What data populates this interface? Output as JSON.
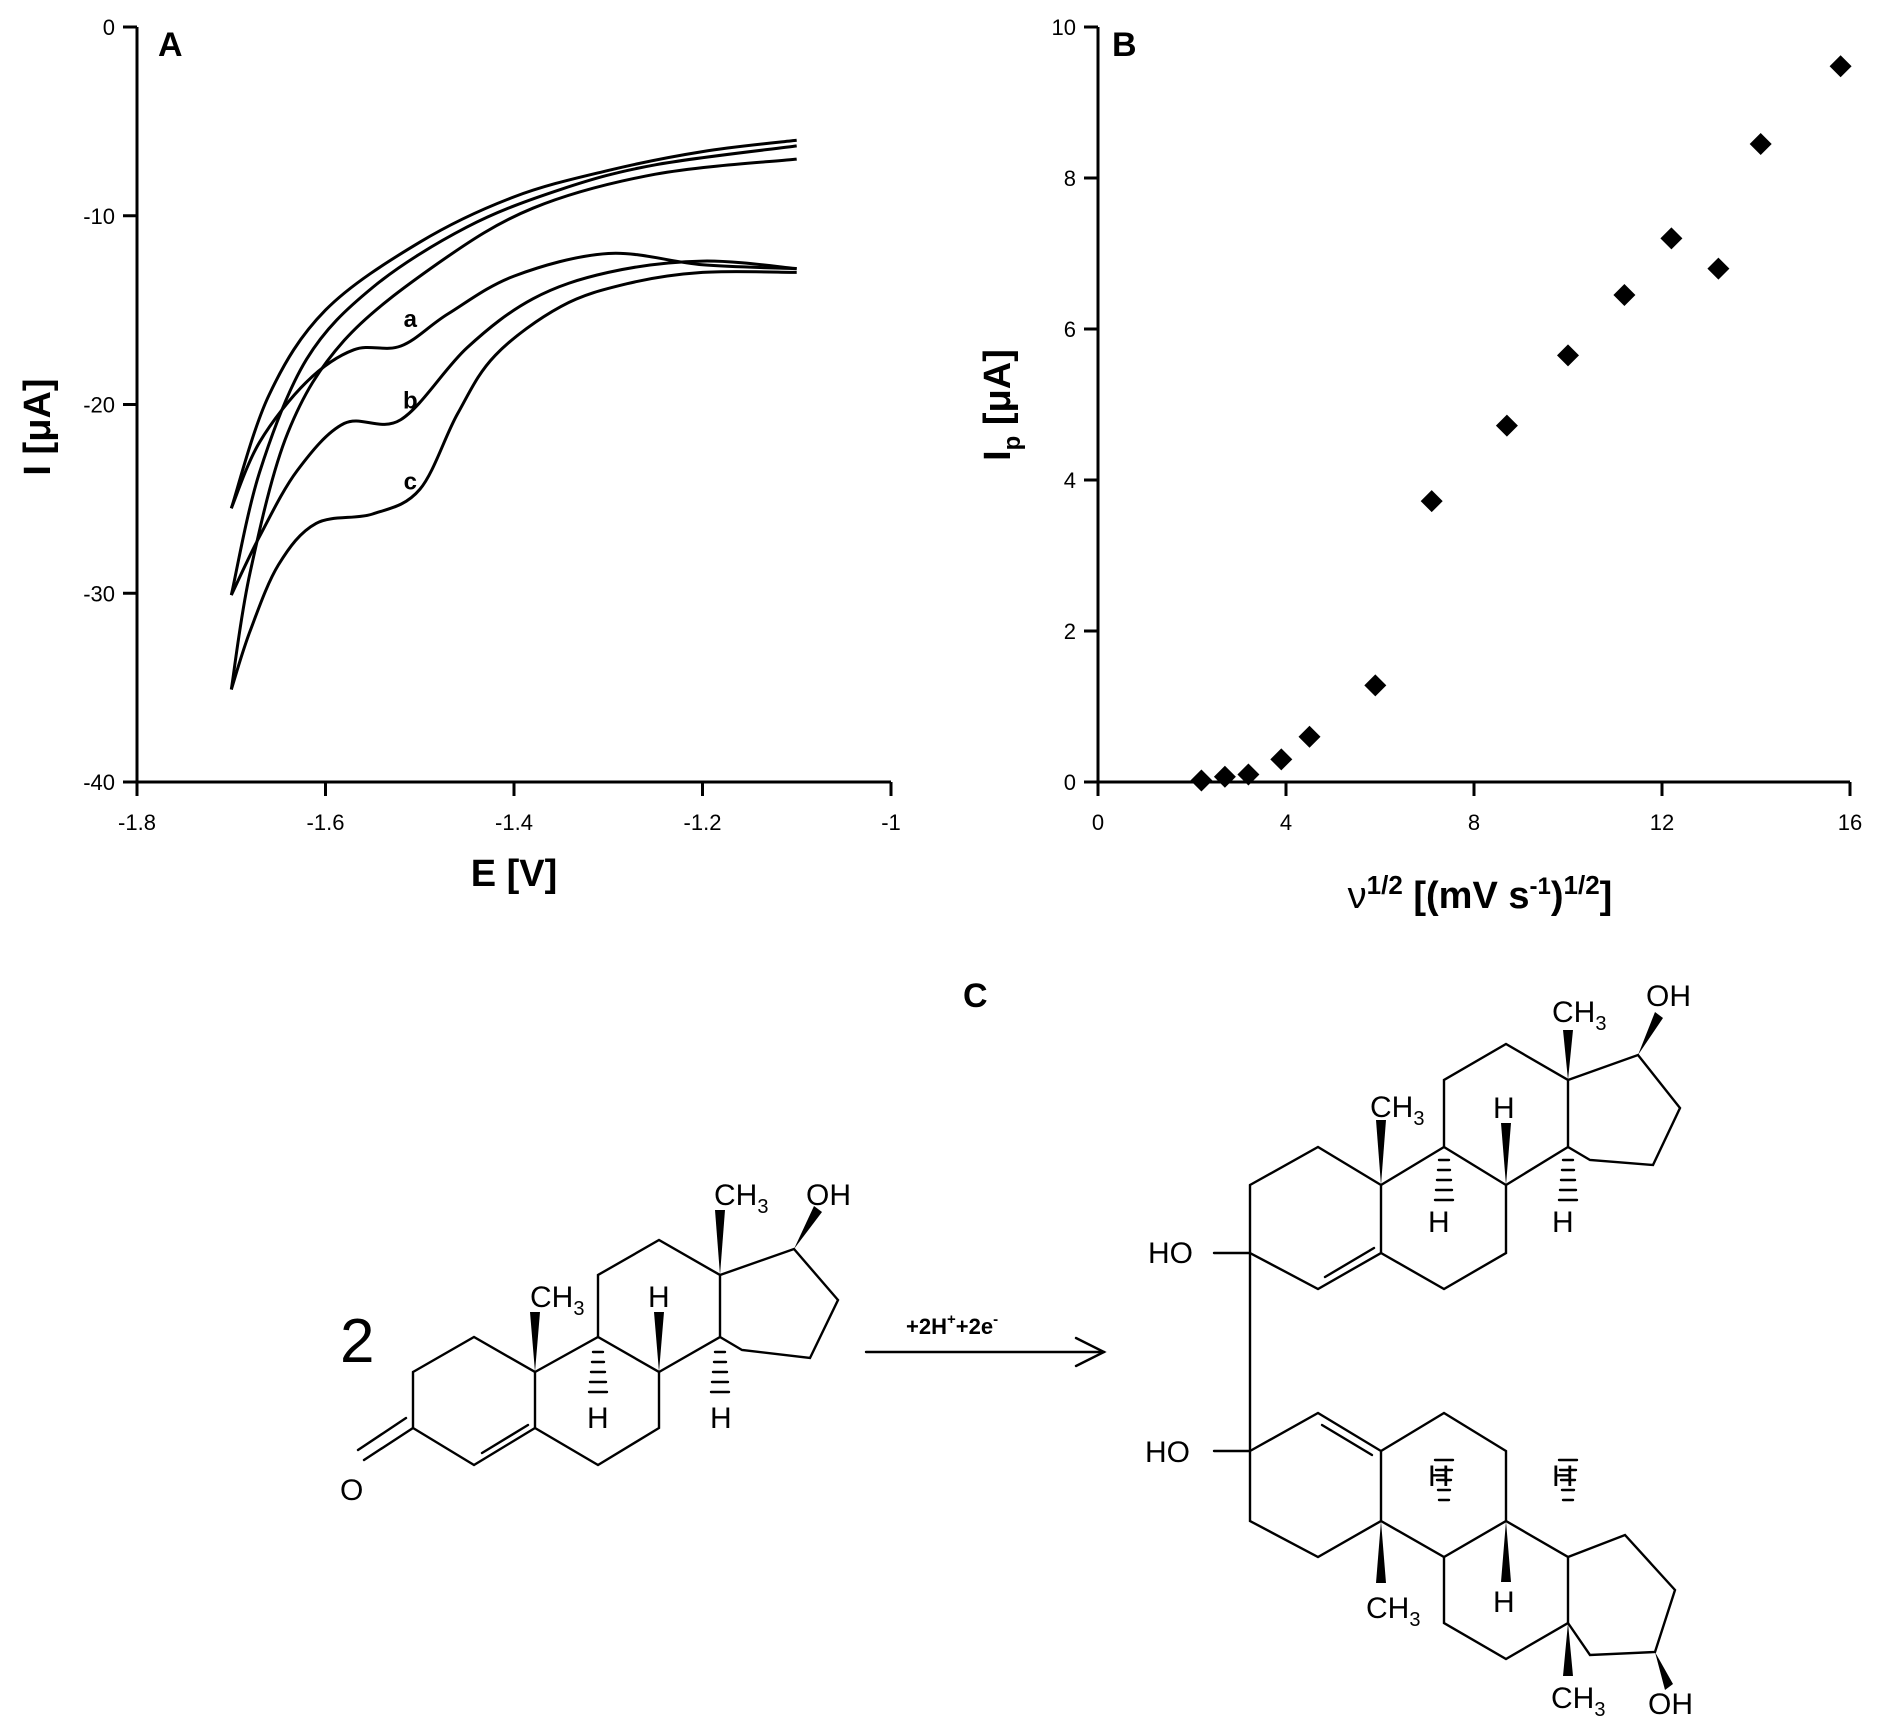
{
  "chart_data": [
    {
      "panel": "A",
      "type": "line",
      "xlabel": "E [V]",
      "ylabel": "I [μA]",
      "xlim": [
        -1.8,
        -1.0
      ],
      "ylim": [
        -40,
        0
      ],
      "xticks": [
        -1.8,
        -1.6,
        -1.4,
        -1.2,
        -1.0
      ],
      "xticklabels": [
        "-1.8",
        "-1.6",
        "-1.4",
        "-1.2",
        "-1"
      ],
      "yticks": [
        0,
        -10,
        -20,
        -30,
        -40
      ],
      "yticklabels": [
        "0",
        "-10",
        "-20",
        "-30",
        "-40"
      ],
      "grid": false,
      "series": [
        {
          "name": "a",
          "label_at": [
            -1.51,
            -15.9
          ],
          "forward": [
            [
              -1.1,
              -12.8
            ],
            [
              -1.2,
              -12.6
            ],
            [
              -1.3,
              -12.0
            ],
            [
              -1.4,
              -13.2
            ],
            [
              -1.47,
              -15.2
            ],
            [
              -1.52,
              -16.9
            ],
            [
              -1.57,
              -17.1
            ],
            [
              -1.62,
              -18.8
            ],
            [
              -1.67,
              -22.0
            ],
            [
              -1.7,
              -25.5
            ]
          ],
          "reverse": [
            [
              -1.7,
              -25.5
            ],
            [
              -1.66,
              -19.5
            ],
            [
              -1.6,
              -15.0
            ],
            [
              -1.5,
              -11.4
            ],
            [
              -1.4,
              -9.0
            ],
            [
              -1.3,
              -7.6
            ],
            [
              -1.2,
              -6.6
            ],
            [
              -1.1,
              -6.0
            ]
          ]
        },
        {
          "name": "b",
          "label_at": [
            -1.51,
            -20.2
          ],
          "forward": [
            [
              -1.1,
              -12.8
            ],
            [
              -1.2,
              -12.4
            ],
            [
              -1.3,
              -13.0
            ],
            [
              -1.38,
              -14.4
            ],
            [
              -1.45,
              -17.0
            ],
            [
              -1.52,
              -20.8
            ],
            [
              -1.58,
              -21.0
            ],
            [
              -1.63,
              -23.5
            ],
            [
              -1.67,
              -27.0
            ],
            [
              -1.7,
              -30.1
            ]
          ],
          "reverse": [
            [
              -1.7,
              -30.1
            ],
            [
              -1.67,
              -23.6
            ],
            [
              -1.62,
              -17.6
            ],
            [
              -1.55,
              -13.8
            ],
            [
              -1.45,
              -10.6
            ],
            [
              -1.35,
              -8.6
            ],
            [
              -1.25,
              -7.3
            ],
            [
              -1.1,
              -6.3
            ]
          ]
        },
        {
          "name": "c",
          "label_at": [
            -1.51,
            -24.5
          ],
          "forward": [
            [
              -1.1,
              -13.0
            ],
            [
              -1.2,
              -13.0
            ],
            [
              -1.28,
              -13.6
            ],
            [
              -1.35,
              -14.8
            ],
            [
              -1.42,
              -17.4
            ],
            [
              -1.46,
              -20.5
            ],
            [
              -1.5,
              -24.5
            ],
            [
              -1.55,
              -25.8
            ],
            [
              -1.61,
              -26.3
            ],
            [
              -1.65,
              -28.5
            ],
            [
              -1.68,
              -32.0
            ],
            [
              -1.7,
              -35.1
            ]
          ],
          "reverse": [
            [
              -1.7,
              -35.1
            ],
            [
              -1.68,
              -28.9
            ],
            [
              -1.64,
              -21.5
            ],
            [
              -1.58,
              -16.6
            ],
            [
              -1.48,
              -12.5
            ],
            [
              -1.38,
              -9.6
            ],
            [
              -1.25,
              -7.8
            ],
            [
              -1.1,
              -7.0
            ]
          ]
        }
      ]
    },
    {
      "panel": "B",
      "type": "scatter",
      "xlabel": "ν1/2 [(mV s-1)1/2]",
      "ylabel": "Ip [μA]",
      "xlim": [
        0,
        16
      ],
      "ylim": [
        0,
        10
      ],
      "xticks": [
        0,
        4,
        8,
        12,
        16
      ],
      "xticklabels": [
        "0",
        "4",
        "8",
        "12",
        "16"
      ],
      "yticks": [
        0,
        2,
        4,
        6,
        8,
        10
      ],
      "yticklabels": [
        "0",
        "2",
        "4",
        "6",
        "8",
        "10"
      ],
      "grid": false,
      "marker": "diamond",
      "x": [
        2.2,
        2.7,
        3.2,
        3.9,
        4.5,
        5.9,
        7.1,
        8.7,
        10.0,
        11.2,
        12.2,
        13.2,
        14.1,
        15.8
      ],
      "y": [
        0.02,
        0.07,
        0.1,
        0.3,
        0.6,
        1.28,
        3.72,
        4.72,
        5.65,
        6.45,
        7.2,
        6.8,
        8.45,
        9.48
      ]
    }
  ],
  "scheme": {
    "panel_label": "C",
    "compound_number": "2",
    "arrow_label_pre": "+2H",
    "arrow_label_sup1": "+",
    "arrow_label_mid": "+2e",
    "arrow_label_sup2": "-",
    "atom_labels": {
      "ch3": "CH",
      "sub3": "3",
      "oh": "OH",
      "ho": "HO",
      "h": "H",
      "o": "O"
    }
  }
}
